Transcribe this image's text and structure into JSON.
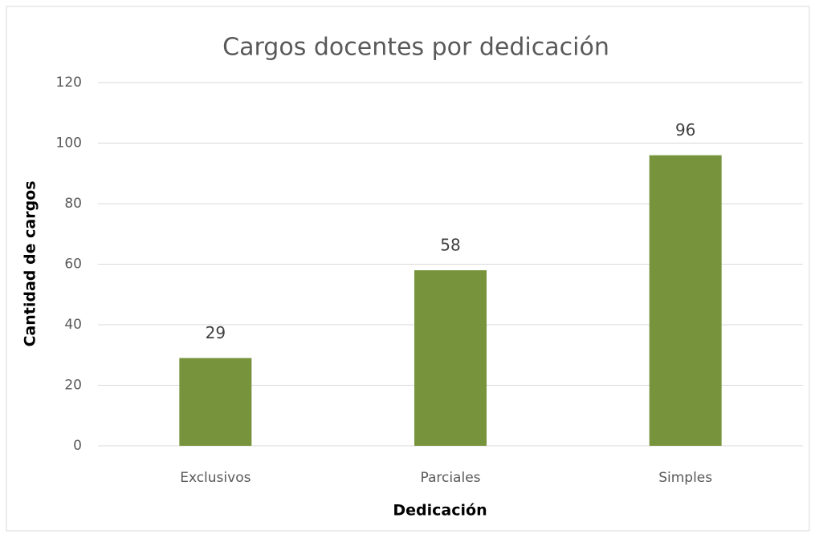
{
  "chart_data": {
    "type": "bar",
    "title": "Cargos docentes por dedicación",
    "x_label": "Dedicación",
    "y_label": "Cantidad de cargos",
    "categories": [
      "Exclusivos",
      "Parciales",
      "Simples"
    ],
    "values": [
      29,
      58,
      96
    ],
    "color": "#77933c",
    "ylim": [
      0,
      120
    ],
    "yticks": [
      0,
      20,
      40,
      60,
      80,
      100,
      120
    ],
    "grid": true
  }
}
